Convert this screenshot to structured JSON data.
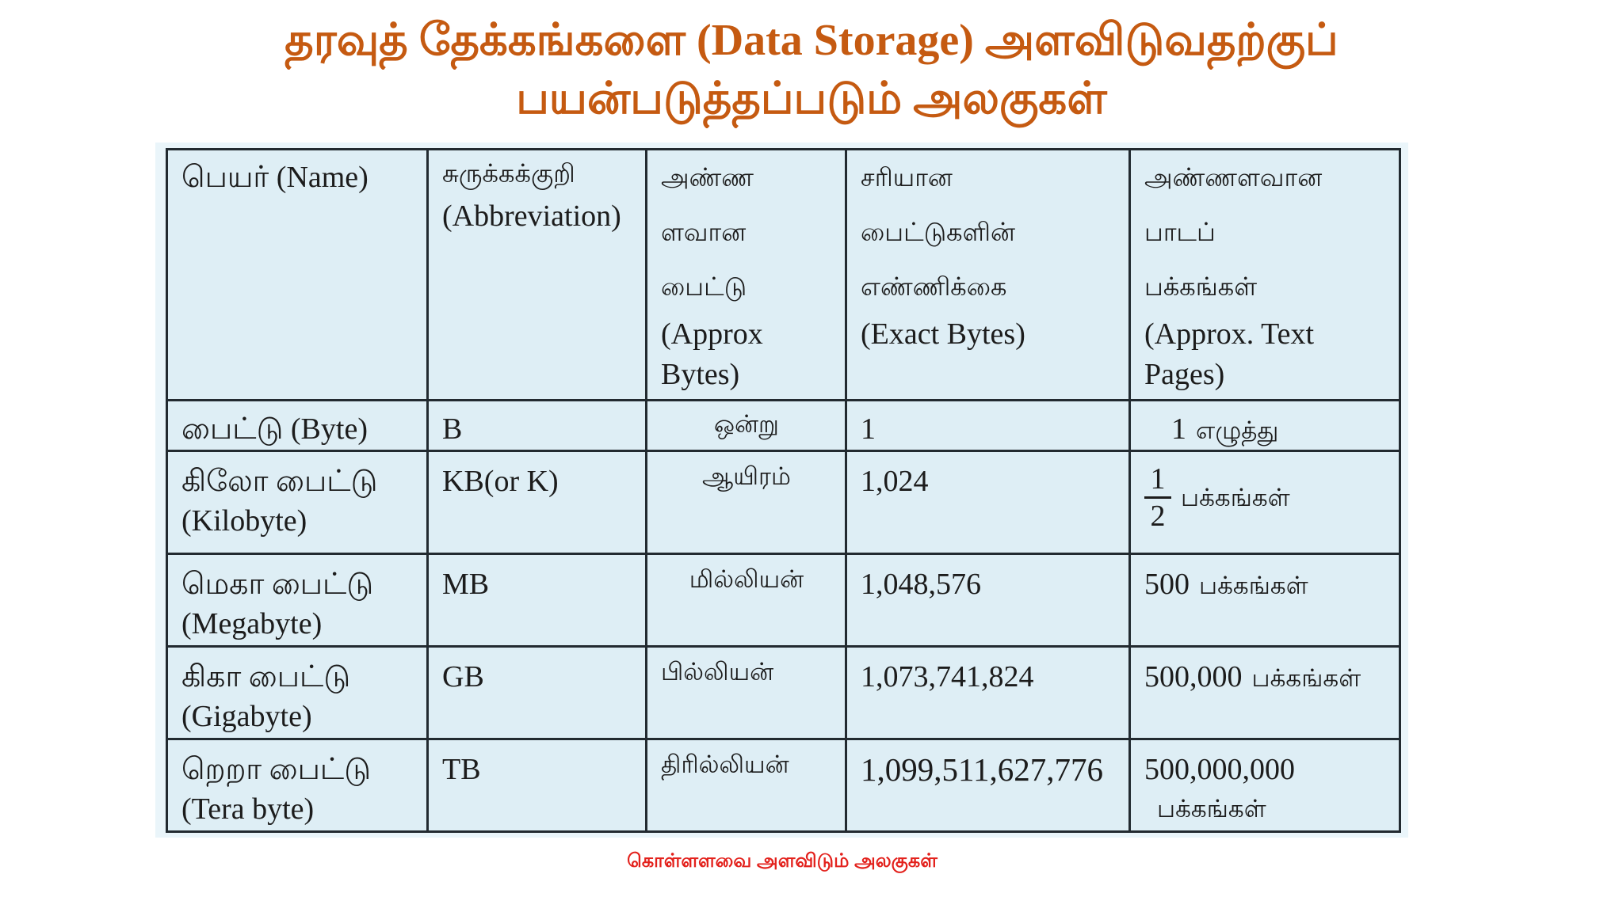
{
  "title": {
    "line1": "தரவுத் தேக்கங்களை (Data Storage) அளவிடுவதற்குப்",
    "line2": "பயன்படுத்தப்படும் அலகுகள்"
  },
  "table": {
    "header": {
      "name": "பெயர் (Name)",
      "abbreviation": {
        "ta": "சுருக்கக்குறி",
        "en": "(Abbreviation)"
      },
      "approx_bytes": {
        "ta": [
          "அண்ண",
          "ளவான",
          "பைட்டு"
        ],
        "en": "(Approx Bytes)"
      },
      "exact_bytes": {
        "ta": [
          "சரியான",
          "பைட்டுகளின்",
          "எண்ணிக்கை"
        ],
        "en": "(Exact Bytes)"
      },
      "approx_pages": {
        "ta": [
          "அண்ணளவான",
          "பாடப்",
          "பக்கங்கள்"
        ],
        "en": "(Approx. Text Pages)"
      }
    },
    "rows": [
      {
        "name": [
          "பைட்டு (Byte)"
        ],
        "abbreviation": "B",
        "approx_bytes": "ஒன்று",
        "exact_bytes": "1",
        "pages": {
          "number": "1",
          "unit": "எழுத்து"
        }
      },
      {
        "name": [
          "கிலோ பைட்டு",
          "(Kilobyte)"
        ],
        "abbreviation": "KB(or K)",
        "approx_bytes": "ஆயிரம்",
        "exact_bytes": "1,024",
        "pages": {
          "numerator": "1",
          "denominator": "2",
          "unit": "பக்கங்கள்"
        }
      },
      {
        "name": [
          "மெகா பைட்டு",
          "(Megabyte)"
        ],
        "abbreviation": "MB",
        "approx_bytes": "மில்லியன்",
        "exact_bytes": "1,048,576",
        "pages": {
          "number": "500",
          "unit": "பக்கங்கள்"
        }
      },
      {
        "name": [
          "கிகா பைட்டு",
          "(Gigabyte)"
        ],
        "abbreviation": "GB",
        "approx_bytes": "பில்லியன்",
        "exact_bytes": "1,073,741,824",
        "pages": {
          "number": "500,000",
          "unit": "பக்கங்கள்"
        }
      },
      {
        "name": [
          "றெறா பைட்டு",
          "(Tera byte)"
        ],
        "abbreviation": "TB",
        "approx_bytes": "திரில்லியன்",
        "exact_bytes": "1,099,511,627,776",
        "pages": {
          "number": "500,000,000",
          "unit": "பக்கங்கள்"
        }
      }
    ]
  },
  "caption": "கொள்ளளவை அளவிடும் அலகுகள்",
  "colors": {
    "title": "#c55a11",
    "caption": "#e3211c",
    "table_border": "#222a30",
    "cell_background": "#deeef5",
    "panel_background": "#eaf5fa"
  }
}
